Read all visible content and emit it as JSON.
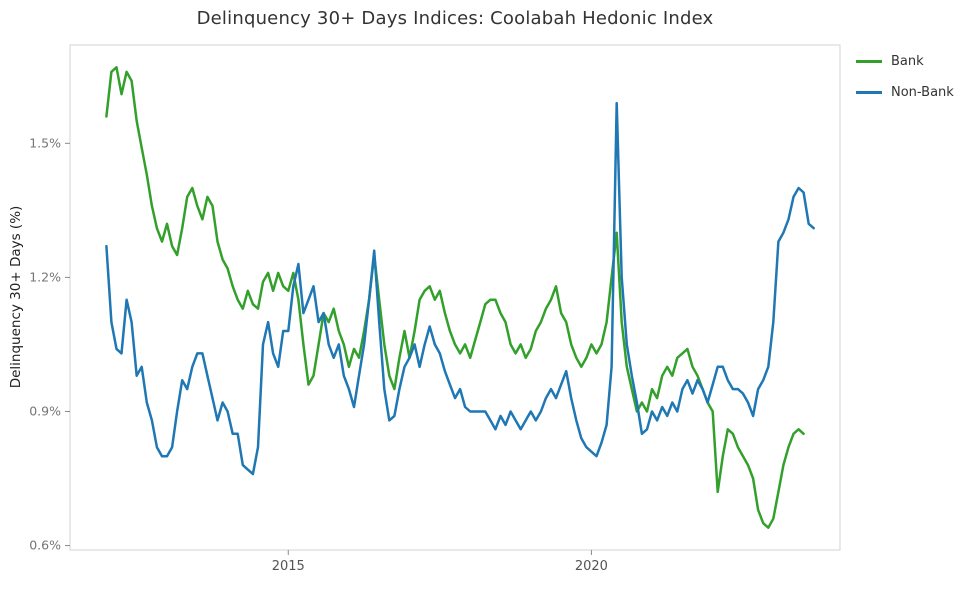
{
  "chart_data": {
    "type": "line",
    "title": "Delinquency 30+ Days Indices: Coolabah Hedonic Index",
    "ylabel": "Delinquency 30+ Days (%)",
    "xlabel": "",
    "grid": false,
    "legend_position": "outside-top-right",
    "xlim": [
      2011.4,
      2024.1
    ],
    "ylim": [
      0.59,
      1.72
    ],
    "xticks": [
      {
        "value": 2015,
        "label": "2015"
      },
      {
        "value": 2020,
        "label": "2020"
      }
    ],
    "yticks": [
      {
        "value": 0.6,
        "label": "0.6%"
      },
      {
        "value": 0.9,
        "label": "0.9%"
      },
      {
        "value": 1.2,
        "label": "1.2%"
      },
      {
        "value": 1.5,
        "label": "1.5%"
      }
    ],
    "x_start": 2012.0,
    "x_step": 0.0833333,
    "x_unit": "year (monthly observations)",
    "series": [
      {
        "name": "Bank",
        "color": "#33a02c",
        "values": [
          1.56,
          1.66,
          1.67,
          1.61,
          1.66,
          1.64,
          1.55,
          1.49,
          1.43,
          1.36,
          1.31,
          1.28,
          1.32,
          1.27,
          1.25,
          1.31,
          1.38,
          1.4,
          1.36,
          1.33,
          1.38,
          1.36,
          1.28,
          1.24,
          1.22,
          1.18,
          1.15,
          1.13,
          1.17,
          1.14,
          1.13,
          1.19,
          1.21,
          1.17,
          1.21,
          1.18,
          1.17,
          1.21,
          1.15,
          1.05,
          0.96,
          0.98,
          1.05,
          1.12,
          1.1,
          1.13,
          1.08,
          1.05,
          1.0,
          1.04,
          1.02,
          1.08,
          1.15,
          1.25,
          1.15,
          1.05,
          0.98,
          0.95,
          1.02,
          1.08,
          1.02,
          1.08,
          1.15,
          1.17,
          1.18,
          1.15,
          1.17,
          1.12,
          1.08,
          1.05,
          1.03,
          1.05,
          1.02,
          1.06,
          1.1,
          1.14,
          1.15,
          1.15,
          1.12,
          1.1,
          1.05,
          1.03,
          1.05,
          1.02,
          1.04,
          1.08,
          1.1,
          1.13,
          1.15,
          1.18,
          1.12,
          1.1,
          1.05,
          1.02,
          1.0,
          1.02,
          1.05,
          1.03,
          1.05,
          1.1,
          1.2,
          1.3,
          1.1,
          1.0,
          0.95,
          0.9,
          0.92,
          0.9,
          0.95,
          0.93,
          0.98,
          1.0,
          0.98,
          1.02,
          1.03,
          1.04,
          1.0,
          0.98,
          0.95,
          0.92,
          0.9,
          0.72,
          0.8,
          0.86,
          0.85,
          0.82,
          0.8,
          0.78,
          0.75,
          0.68,
          0.65,
          0.64,
          0.66,
          0.72,
          0.78,
          0.82,
          0.85,
          0.86,
          0.85
        ]
      },
      {
        "name": "Non-Bank",
        "color": "#1f77b4",
        "values": [
          1.27,
          1.1,
          1.04,
          1.03,
          1.15,
          1.1,
          0.98,
          1.0,
          0.92,
          0.88,
          0.82,
          0.8,
          0.8,
          0.82,
          0.9,
          0.97,
          0.95,
          1.0,
          1.03,
          1.03,
          0.98,
          0.93,
          0.88,
          0.92,
          0.9,
          0.85,
          0.85,
          0.78,
          0.77,
          0.76,
          0.82,
          1.05,
          1.1,
          1.03,
          1.0,
          1.08,
          1.08,
          1.18,
          1.23,
          1.12,
          1.15,
          1.18,
          1.1,
          1.12,
          1.05,
          1.02,
          1.05,
          0.98,
          0.95,
          0.91,
          0.98,
          1.05,
          1.15,
          1.26,
          1.1,
          0.95,
          0.88,
          0.89,
          0.95,
          1.0,
          1.02,
          1.05,
          1.0,
          1.05,
          1.09,
          1.05,
          1.03,
          0.99,
          0.96,
          0.93,
          0.95,
          0.91,
          0.9,
          0.9,
          0.9,
          0.9,
          0.88,
          0.86,
          0.89,
          0.87,
          0.9,
          0.88,
          0.86,
          0.88,
          0.9,
          0.88,
          0.9,
          0.93,
          0.95,
          0.93,
          0.96,
          0.99,
          0.93,
          0.88,
          0.84,
          0.82,
          0.81,
          0.8,
          0.83,
          0.87,
          1.0,
          1.59,
          1.2,
          1.05,
          0.98,
          0.92,
          0.85,
          0.86,
          0.9,
          0.88,
          0.91,
          0.89,
          0.92,
          0.9,
          0.95,
          0.97,
          0.94,
          0.97,
          0.95,
          0.92,
          0.96,
          1.0,
          1.0,
          0.97,
          0.95,
          0.95,
          0.94,
          0.92,
          0.89,
          0.95,
          0.97,
          1.0,
          1.1,
          1.28,
          1.3,
          1.33,
          1.38,
          1.4,
          1.39,
          1.32,
          1.31
        ]
      }
    ]
  }
}
